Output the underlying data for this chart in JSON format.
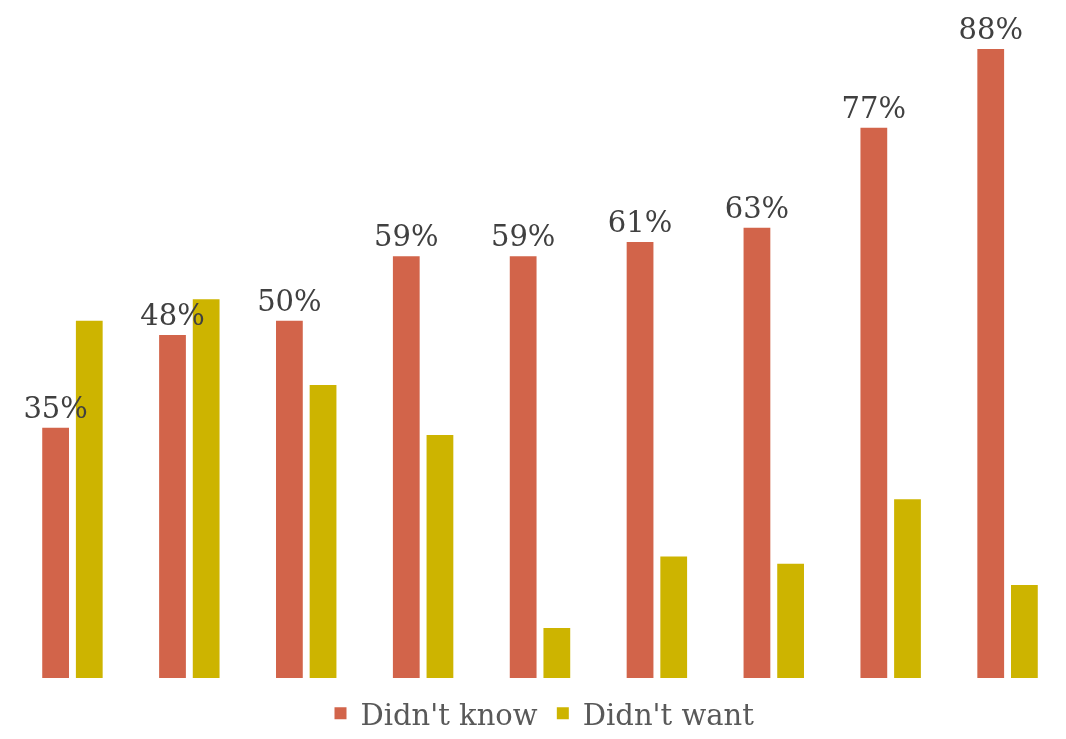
{
  "chart_data": {
    "type": "bar",
    "categories": [
      null,
      null,
      null,
      null,
      null,
      null,
      null,
      null,
      null
    ],
    "series": [
      {
        "name": "Didn't know",
        "color": "#d2644a",
        "values": [
          35,
          48,
          50,
          59,
          59,
          61,
          63,
          77,
          88
        ],
        "value_labels": [
          "35%",
          "48%",
          "50%",
          "59%",
          "59%",
          "61%",
          "63%",
          "77%",
          "88%"
        ]
      },
      {
        "name": "Didn't want",
        "color": "#cdb400",
        "values": [
          50,
          53,
          41,
          34,
          7,
          17,
          16,
          25,
          13
        ]
      }
    ],
    "tick_labels": false,
    "legend": "bottom"
  }
}
